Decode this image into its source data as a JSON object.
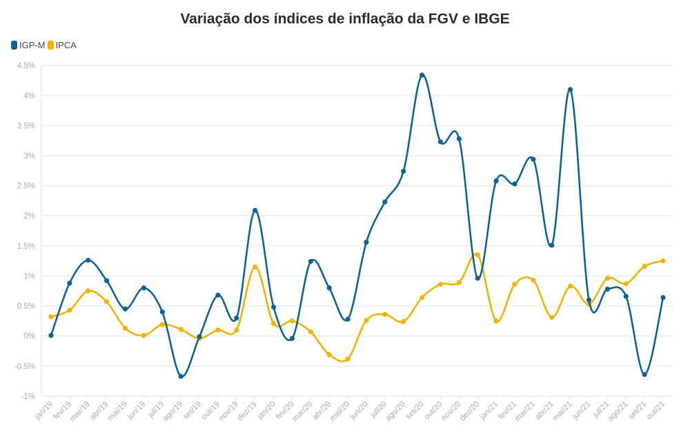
{
  "chart_data": {
    "type": "line",
    "title": "Variação dos índices de inflação da FGV e IBGE",
    "xlabel": "",
    "ylabel": "",
    "ylim": [
      -1,
      4.5
    ],
    "yticks": [
      -1,
      -0.5,
      0,
      0.5,
      1,
      1.5,
      2,
      2.5,
      3,
      3.5,
      4,
      4.5
    ],
    "ytick_labels": [
      "-1%",
      "-0.5%",
      "0%",
      "0.5%",
      "1%",
      "1.5%",
      "2%",
      "2.5%",
      "3%",
      "3.5%",
      "4%",
      "4.5%"
    ],
    "grid": true,
    "legend": "top-left",
    "categories": [
      "jan/19",
      "fev/19",
      "mar/19",
      "abr/19",
      "mai/19",
      "jun/19",
      "jul/19",
      "ago/19",
      "set/19",
      "out/19",
      "nov/19",
      "dez/19",
      "jan/20",
      "fev/20",
      "mar/20",
      "abr/20",
      "mai/20",
      "jun/20",
      "jul/20",
      "ago/20",
      "set/20",
      "out/20",
      "nov/20",
      "dez/20",
      "jan/21",
      "fev/21",
      "mar/21",
      "abr/21",
      "mai/21",
      "jun/21",
      "jul/21",
      "ago/21",
      "set/21",
      "out/21"
    ],
    "series": [
      {
        "name": "IGP-M",
        "color": "#0b6396",
        "values": [
          0.01,
          0.88,
          1.26,
          0.92,
          0.45,
          0.8,
          0.4,
          -0.67,
          -0.01,
          0.68,
          0.3,
          2.09,
          0.48,
          -0.04,
          1.24,
          0.8,
          0.28,
          1.56,
          2.23,
          2.74,
          4.34,
          3.23,
          3.28,
          0.96,
          2.58,
          2.53,
          2.94,
          1.51,
          4.1,
          0.6,
          0.78,
          0.66,
          -0.64,
          0.64
        ]
      },
      {
        "name": "IPCA",
        "color": "#f2b200",
        "values": [
          0.32,
          0.43,
          0.75,
          0.57,
          0.13,
          0.01,
          0.19,
          0.11,
          -0.04,
          0.1,
          0.1,
          1.15,
          0.21,
          0.25,
          0.07,
          -0.31,
          -0.38,
          0.26,
          0.36,
          0.24,
          0.64,
          0.86,
          0.89,
          1.35,
          0.25,
          0.86,
          0.93,
          0.31,
          0.83,
          0.53,
          0.96,
          0.87,
          1.16,
          1.25
        ]
      }
    ]
  }
}
